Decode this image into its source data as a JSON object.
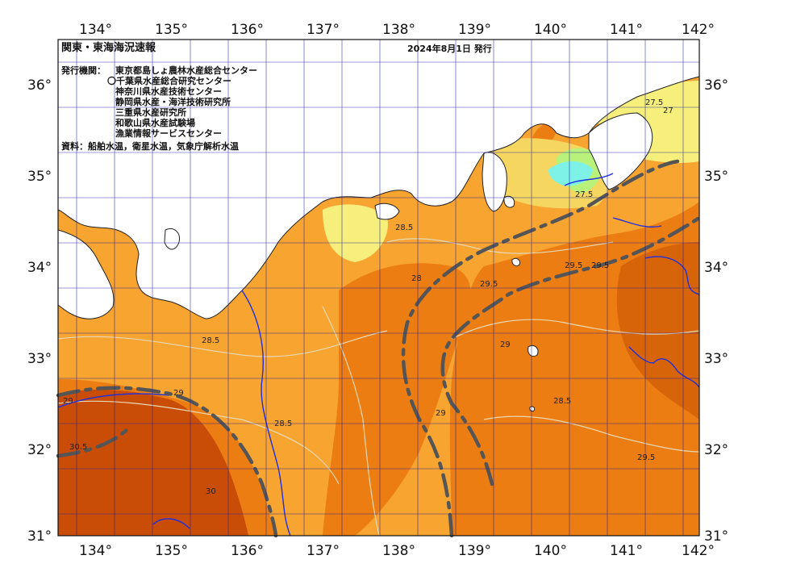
{
  "header": {
    "title": "関東・東海海況速報",
    "issue_date": "2024年8月1日 発行"
  },
  "issuers": {
    "label": "発行機関：",
    "list": [
      "東京都島しょ農林水産総合センター",
      "〇千葉県水産総合研究センター",
      "神奈川県水産技術センター",
      "静岡県水産・海洋技術研究所",
      "三重県水産研究所",
      "和歌山県水産試験場",
      "漁業情報サービスセンター"
    ]
  },
  "source": "資料：船舶水温，衛星水温，気象庁解析水温",
  "axes": {
    "lon_labels": [
      "134°",
      "135°",
      "136°",
      "137°",
      "138°",
      "139°",
      "140°",
      "141°",
      "142°"
    ],
    "lat_labels": [
      "36°",
      "35°",
      "34°",
      "33°",
      "32°",
      "31°"
    ],
    "lon_range": [
      133.5,
      142
    ],
    "lat_range": [
      31,
      36.5
    ]
  },
  "isotherm_labels": [
    "28.5",
    "29",
    "29.5",
    "30",
    "30.5",
    "28",
    "27.5",
    "27"
  ],
  "colors": {
    "ocean_warm": "#f7a431",
    "ocean_hot": "#ec7d12",
    "ocean_hottest": "#c94d06",
    "coastal_cool": "#f5d660",
    "coastal_pale": "#f6ef7c",
    "coastal_green": "#b9f27a",
    "coastal_cyan": "#7ff2e8",
    "land": "#ffffff",
    "grid": "#1a1aa0",
    "kuroshio_axis": "#555555"
  }
}
